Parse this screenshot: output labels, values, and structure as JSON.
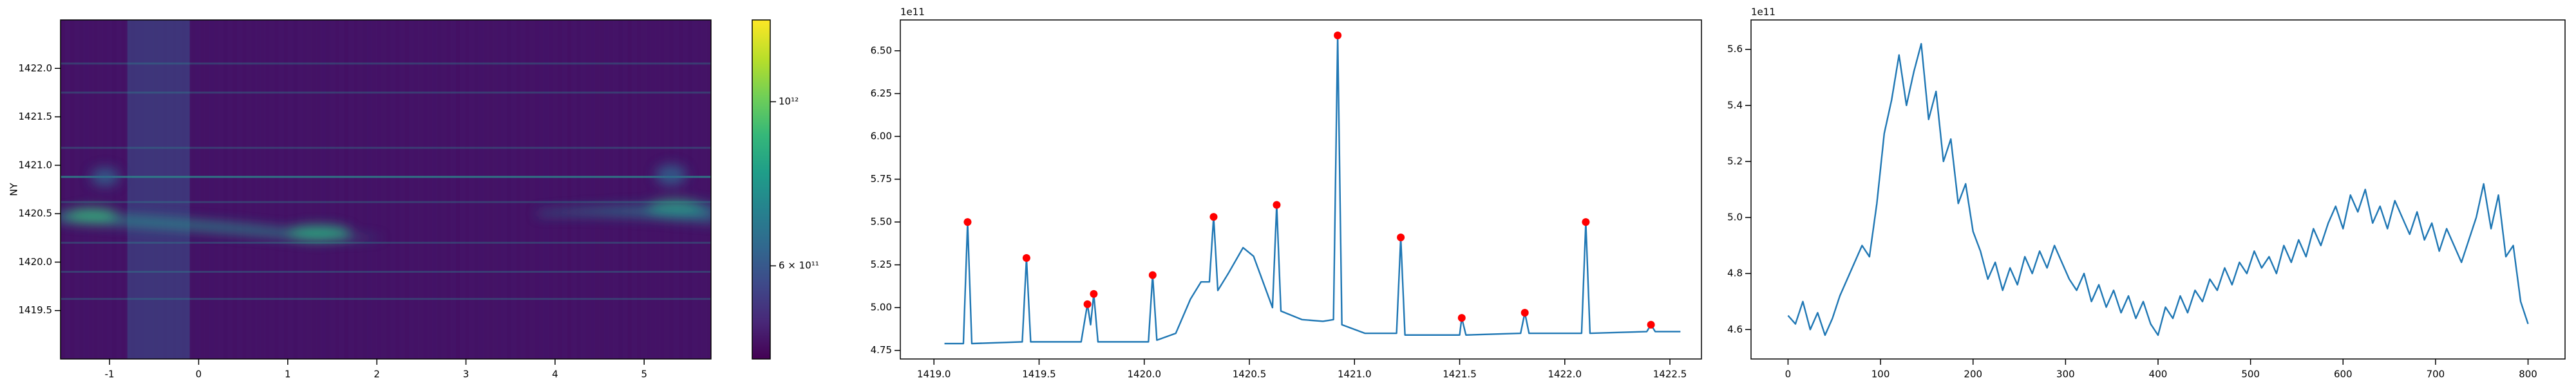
{
  "chart_data": [
    {
      "type": "heatmap",
      "ylabel": "NY",
      "xlim": [
        -1.55,
        5.75
      ],
      "ylim": [
        1419.0,
        1422.5
      ],
      "xticks": [
        -1,
        0,
        1,
        2,
        3,
        4,
        5
      ],
      "yticks": [
        1419.5,
        {
          "value": 1420.0,
          "label": "1420.0"
        },
        1420.5,
        {
          "value": 1421.0,
          "label": "1421.0"
        },
        1421.5,
        {
          "value": 1422.0,
          "label": "1422.0"
        }
      ],
      "colorbar": {
        "log": true,
        "lim": [
          449000000000,
          1290000000000
        ],
        "ticks": [
          {
            "value": 1000000000000,
            "label": "10¹²"
          },
          {
            "value": 600000000000,
            "label": "6 × 10¹¹"
          }
        ]
      }
    },
    {
      "type": "line",
      "offset_label": "1e11",
      "xlim": [
        1418.84,
        1422.65
      ],
      "ylim": [
        4.7,
        6.68
      ],
      "xticks": [
        {
          "value": 1419.0,
          "label": "1419.0"
        },
        1419.5,
        {
          "value": 1420.0,
          "label": "1420.0"
        },
        1420.5,
        {
          "value": 1421.0,
          "label": "1421.0"
        },
        1421.5,
        {
          "value": 1422.0,
          "label": "1422.0"
        },
        1422.5
      ],
      "yticks": [
        4.75,
        {
          "value": 5.0,
          "label": "5.00"
        },
        5.25,
        {
          "value": 5.5,
          "label": "5.50"
        },
        5.75,
        {
          "value": 6.0,
          "label": "6.00"
        },
        6.25,
        {
          "value": 6.5,
          "label": "6.50"
        }
      ],
      "series": [
        {
          "color": "#1f77b4",
          "x": [
            1419.05,
            1419.14,
            1419.16,
            1419.18,
            1419.42,
            1419.44,
            1419.46,
            1419.7,
            1419.73,
            1419.745,
            1419.76,
            1419.78,
            1420.02,
            1420.04,
            1420.06,
            1420.15,
            1420.22,
            1420.27,
            1420.31,
            1420.33,
            1420.35,
            1420.4,
            1420.47,
            1420.52,
            1420.58,
            1420.61,
            1420.63,
            1420.65,
            1420.75,
            1420.85,
            1420.9,
            1420.92,
            1420.94,
            1421.05,
            1421.2,
            1421.22,
            1421.24,
            1421.5,
            1421.51,
            1421.53,
            1421.79,
            1421.81,
            1421.83,
            1422.08,
            1422.1,
            1422.12,
            1422.39,
            1422.41,
            1422.43,
            1422.55
          ],
          "values": [
            4.79,
            4.79,
            5.5,
            4.79,
            4.8,
            5.29,
            4.8,
            4.8,
            5.02,
            4.9,
            5.08,
            4.8,
            4.8,
            5.19,
            4.81,
            4.85,
            5.05,
            5.15,
            5.15,
            5.53,
            5.1,
            5.2,
            5.35,
            5.3,
            5.1,
            5.0,
            5.6,
            4.98,
            4.93,
            4.92,
            4.93,
            6.59,
            4.9,
            4.85,
            4.85,
            5.41,
            4.84,
            4.84,
            4.94,
            4.84,
            4.85,
            4.97,
            4.85,
            4.85,
            5.5,
            4.85,
            4.86,
            4.9,
            4.86,
            4.86
          ]
        }
      ],
      "peaks": {
        "color": "red",
        "x": [
          1419.16,
          1419.44,
          1419.73,
          1419.76,
          1420.04,
          1420.33,
          1420.63,
          1420.92,
          1421.22,
          1421.51,
          1421.81,
          1422.1,
          1422.41
        ],
        "values": [
          5.5,
          5.29,
          5.02,
          5.08,
          5.19,
          5.53,
          5.6,
          6.59,
          5.41,
          4.94,
          4.97,
          5.5,
          4.9
        ]
      }
    },
    {
      "type": "line",
      "offset_label": "1e11",
      "xlim": [
        -40,
        840
      ],
      "ylim": [
        4.495,
        5.705
      ],
      "xticks": [
        0,
        100,
        200,
        300,
        400,
        500,
        600,
        700,
        800
      ],
      "yticks": [
        4.6,
        4.8,
        {
          "value": 5.0,
          "label": "5.0"
        },
        5.2,
        5.4,
        5.6
      ],
      "series": [
        {
          "color": "#1f77b4",
          "x": [
            0,
            8,
            16,
            24,
            32,
            40,
            48,
            56,
            64,
            72,
            80,
            88,
            96,
            104,
            112,
            120,
            128,
            136,
            144,
            152,
            160,
            168,
            176,
            184,
            192,
            200,
            208,
            216,
            224,
            232,
            240,
            248,
            256,
            264,
            272,
            280,
            288,
            296,
            304,
            312,
            320,
            328,
            336,
            344,
            352,
            360,
            368,
            376,
            384,
            392,
            400,
            408,
            416,
            424,
            432,
            440,
            448,
            456,
            464,
            472,
            480,
            488,
            496,
            504,
            512,
            520,
            528,
            536,
            544,
            552,
            560,
            568,
            576,
            584,
            592,
            600,
            608,
            616,
            624,
            632,
            640,
            648,
            656,
            664,
            672,
            680,
            688,
            696,
            704,
            712,
            720,
            728,
            736,
            744,
            752,
            760,
            768,
            776,
            784,
            792,
            800
          ],
          "values": [
            4.65,
            4.62,
            4.7,
            4.6,
            4.66,
            4.58,
            4.64,
            4.72,
            4.78,
            4.84,
            4.9,
            4.86,
            5.05,
            5.3,
            5.42,
            5.58,
            5.4,
            5.52,
            5.62,
            5.35,
            5.45,
            5.2,
            5.28,
            5.05,
            5.12,
            4.95,
            4.88,
            4.78,
            4.84,
            4.74,
            4.82,
            4.76,
            4.86,
            4.8,
            4.88,
            4.82,
            4.9,
            4.84,
            4.78,
            4.74,
            4.8,
            4.7,
            4.76,
            4.68,
            4.74,
            4.66,
            4.72,
            4.64,
            4.7,
            4.62,
            4.58,
            4.68,
            4.64,
            4.72,
            4.66,
            4.74,
            4.7,
            4.78,
            4.74,
            4.82,
            4.76,
            4.84,
            4.8,
            4.88,
            4.82,
            4.86,
            4.8,
            4.9,
            4.84,
            4.92,
            4.86,
            4.96,
            4.9,
            4.98,
            5.04,
            4.96,
            5.08,
            5.02,
            5.1,
            4.98,
            5.04,
            4.96,
            5.06,
            5.0,
            4.94,
            5.02,
            4.92,
            4.98,
            4.88,
            4.96,
            4.9,
            4.84,
            4.92,
            5.0,
            5.12,
            4.96,
            5.08,
            4.86,
            4.9,
            4.7,
            4.62
          ]
        }
      ]
    }
  ]
}
